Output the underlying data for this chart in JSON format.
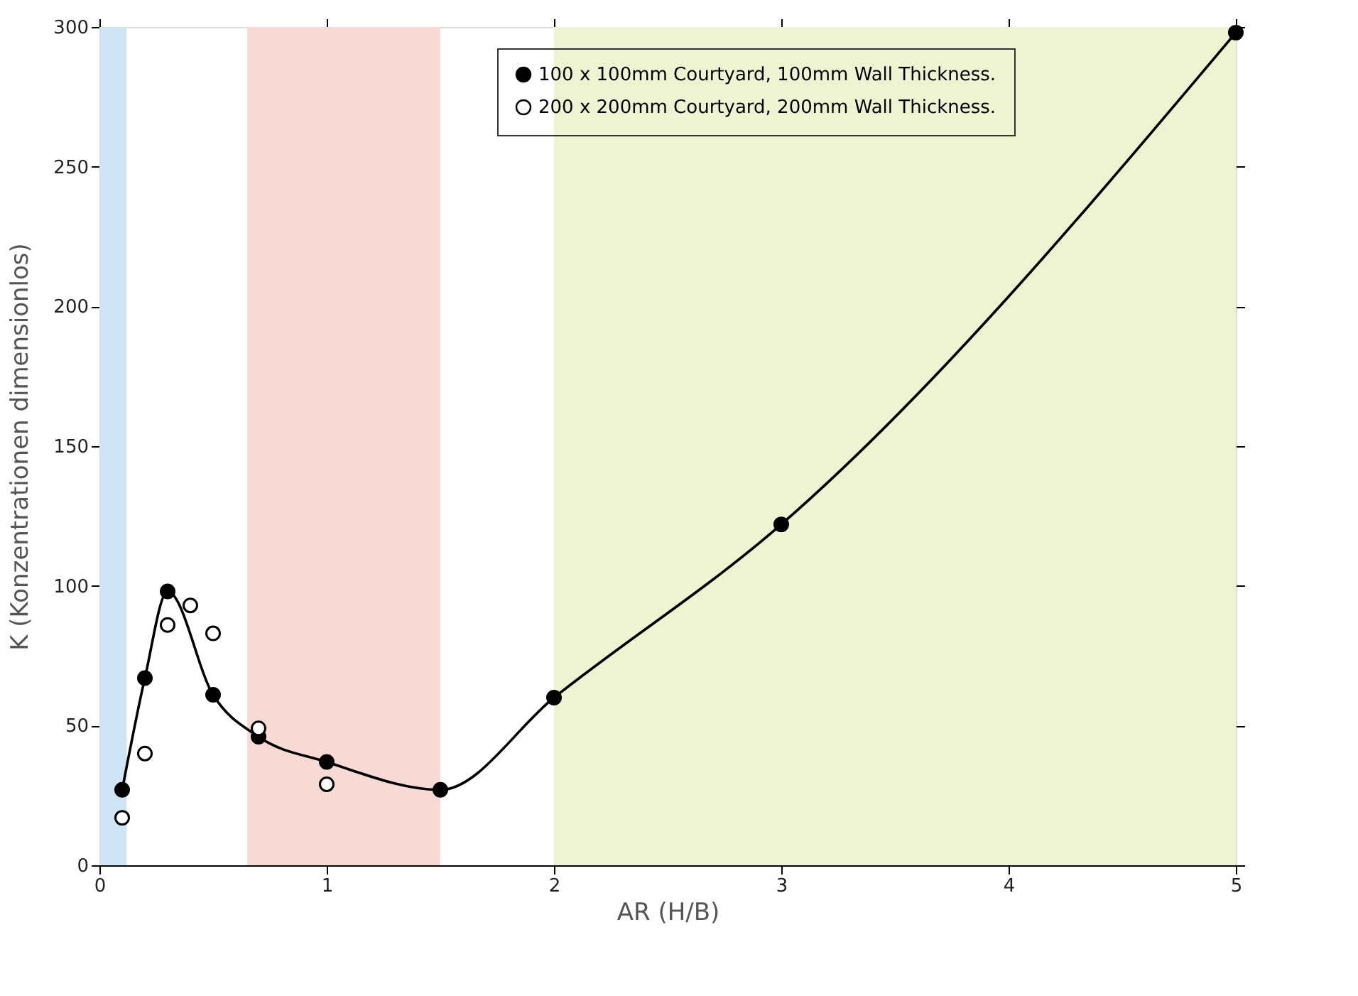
{
  "chart_data": {
    "type": "line",
    "xlabel": "AR (H/B)",
    "ylabel": "K (Konzentrationen dimensionlos)",
    "xlim": [
      0,
      5
    ],
    "xticks": [
      0,
      1,
      2,
      3,
      4,
      5
    ],
    "ylim": [
      0,
      300
    ],
    "yticks": [
      0,
      50,
      100,
      150,
      200,
      250,
      300
    ],
    "grid": false,
    "legend": "top right",
    "marker": "circle",
    "line_style": "solid",
    "bands": [
      {
        "axis": "x",
        "from": 0,
        "to": 0.12,
        "color": "#cfe5f6"
      },
      {
        "axis": "x",
        "from": 0.65,
        "to": 1.5,
        "color": "#f8dad4"
      },
      {
        "axis": "x",
        "from": 2,
        "to": 5,
        "color": "#eef3d2"
      }
    ],
    "series": [
      {
        "name": "100 x 100mm Courtyard, 100mm Wall Thickness.",
        "color": "#000000",
        "x": [
          0.1,
          0.2,
          0.3,
          0.5,
          0.7,
          1.0,
          1.5,
          2,
          3,
          5
        ],
        "values": [
          27,
          67,
          98,
          61,
          46,
          37,
          27,
          60,
          122,
          298
        ]
      },
      {
        "name": "200 x 200mm Courtyard, 200mm Wall Thickness.",
        "type": "scatter",
        "color": "#000000",
        "x": [
          0.1,
          0.2,
          0.3,
          0.4,
          0.5,
          0.7,
          1.0
        ],
        "values": [
          17,
          40,
          86,
          93,
          83,
          49,
          29
        ]
      }
    ]
  }
}
